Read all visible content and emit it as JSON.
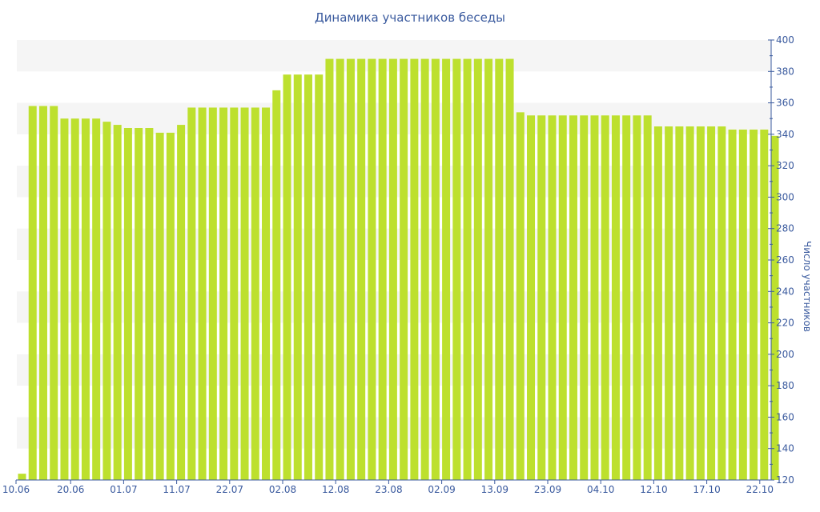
{
  "chart_data": {
    "type": "bar",
    "title": "Динамика участников беседы",
    "xlabel": "",
    "ylabel": "Число участников",
    "ylim": [
      120,
      400
    ],
    "yticks": [
      120,
      140,
      160,
      180,
      200,
      220,
      240,
      260,
      280,
      300,
      320,
      340,
      360,
      380,
      400
    ],
    "y_axis_side": "right",
    "grid": "alternating horizontal bands",
    "bar_color": "#bde02e",
    "band_color": "#f5f5f5",
    "text_color": "#3a5a9e",
    "axis_color": "#3a5a9e",
    "xtick_labels": [
      "10.06",
      "20.06",
      "01.07",
      "11.07",
      "22.07",
      "02.08",
      "12.08",
      "23.08",
      "02.09",
      "13.09",
      "23.09",
      "04.10",
      "12.10",
      "17.10",
      "22.10"
    ],
    "xtick_bar_index": [
      0,
      5,
      10,
      15,
      20,
      25,
      30,
      35,
      40,
      45,
      50,
      55,
      60,
      65,
      70
    ],
    "values": [
      124,
      358,
      358,
      358,
      350,
      350,
      350,
      350,
      348,
      346,
      344,
      344,
      344,
      341,
      341,
      346,
      357,
      357,
      357,
      357,
      357,
      357,
      357,
      357,
      368,
      378,
      378,
      378,
      378,
      388,
      388,
      388,
      388,
      388,
      388,
      388,
      388,
      388,
      388,
      388,
      388,
      388,
      388,
      388,
      388,
      388,
      388,
      354,
      352,
      352,
      352,
      352,
      352,
      352,
      352,
      352,
      352,
      352,
      352,
      352,
      345,
      345,
      345,
      345,
      345,
      345,
      345,
      343,
      343,
      343,
      343,
      339
    ]
  }
}
